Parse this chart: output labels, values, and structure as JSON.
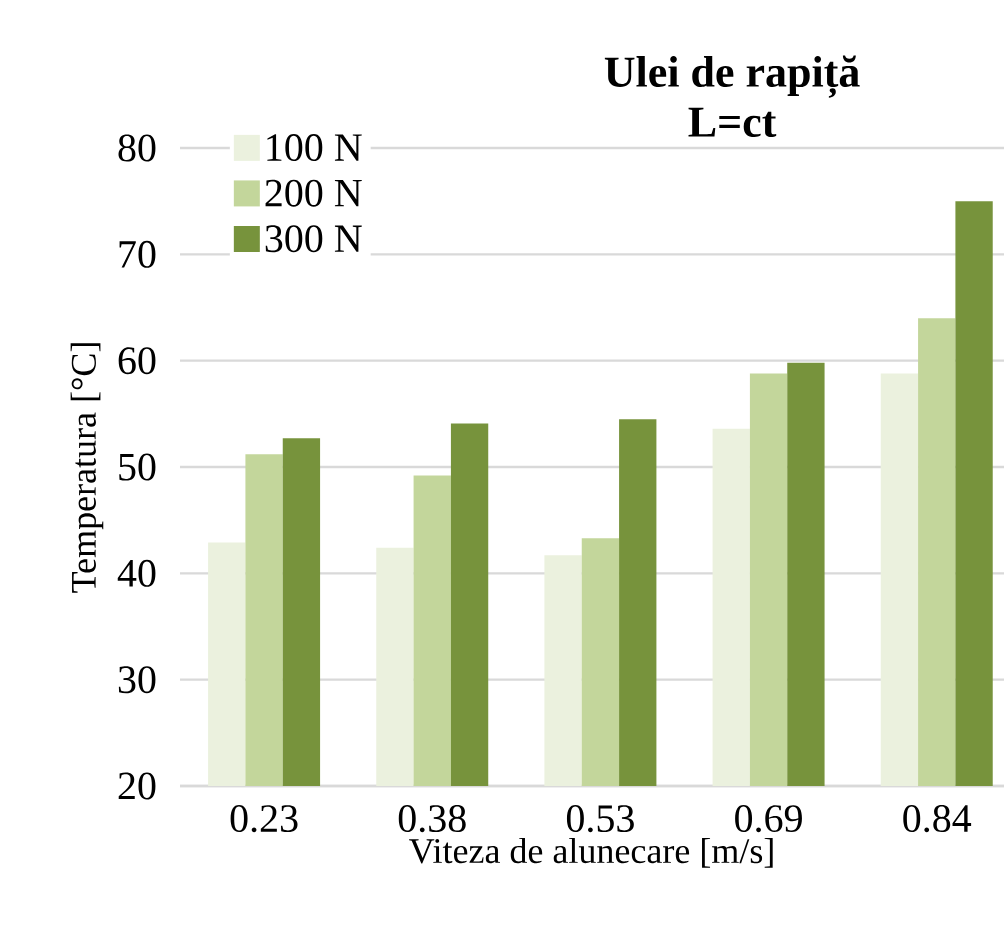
{
  "chart_data": {
    "type": "bar",
    "title": "Ulei de rapiță\nL=ct",
    "xlabel": "Viteza de alunecare [m/s]",
    "ylabel": "Temperatura [°C]",
    "categories": [
      "0.23",
      "0.38",
      "0.53",
      "0.69",
      "0.84"
    ],
    "series": [
      {
        "name": "100 N",
        "color": "#ebf1de",
        "values": [
          42.9,
          42.4,
          41.7,
          53.6,
          58.8
        ]
      },
      {
        "name": "200 N",
        "color": "#c3d69b",
        "values": [
          51.2,
          49.2,
          43.3,
          58.8,
          64.0
        ]
      },
      {
        "name": "300 N",
        "color": "#77933c",
        "values": [
          52.7,
          54.1,
          54.5,
          59.8,
          75.0
        ]
      }
    ],
    "ylim": [
      20,
      80
    ],
    "yticks": [
      20,
      30,
      40,
      50,
      60,
      70,
      80
    ],
    "grid": "y",
    "legend": "top left"
  }
}
